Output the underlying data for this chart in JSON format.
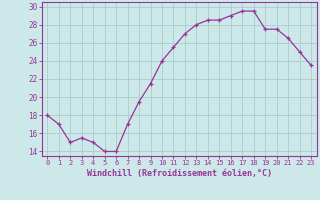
{
  "x": [
    0,
    1,
    2,
    3,
    4,
    5,
    6,
    7,
    8,
    9,
    10,
    11,
    12,
    13,
    14,
    15,
    16,
    17,
    18,
    19,
    20,
    21,
    22,
    23
  ],
  "y": [
    18,
    17,
    15,
    15.5,
    15,
    14,
    14,
    17,
    19.5,
    21.5,
    24,
    25.5,
    27,
    28,
    28.5,
    28.5,
    29,
    29.5,
    29.5,
    27.5,
    27.5,
    26.5,
    25,
    23.5
  ],
  "line_color": "#993399",
  "marker": "+",
  "bg_color": "#cce8e8",
  "grid_color": "#aacccc",
  "xlabel": "Windchill (Refroidissement éolien,°C)",
  "xlabel_color": "#993399",
  "tick_color": "#993399",
  "ylim": [
    13.5,
    30.5
  ],
  "yticks": [
    14,
    16,
    18,
    20,
    22,
    24,
    26,
    28,
    30
  ],
  "xlim": [
    -0.5,
    23.5
  ],
  "xticks": [
    0,
    1,
    2,
    3,
    4,
    5,
    6,
    7,
    8,
    9,
    10,
    11,
    12,
    13,
    14,
    15,
    16,
    17,
    18,
    19,
    20,
    21,
    22,
    23
  ],
  "xtick_labels": [
    "0",
    "1",
    "2",
    "3",
    "4",
    "5",
    "6",
    "7",
    "8",
    "9",
    "10",
    "11",
    "12",
    "13",
    "14",
    "15",
    "16",
    "17",
    "18",
    "19",
    "20",
    "21",
    "22",
    "23"
  ],
  "spine_color": "#993399",
  "markersize": 3,
  "linewidth": 0.9
}
